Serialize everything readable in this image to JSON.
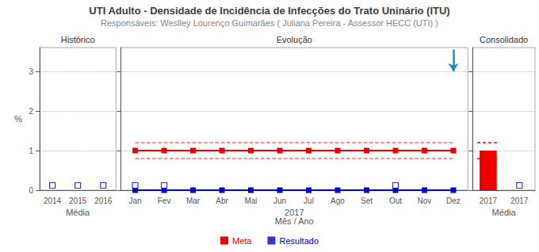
{
  "title": "UTI Adulto - Densidade de Incidência de Infecções do Trato Uninário (ITU)",
  "subtitle": "Responsáveis: Weslley Lourenço Guimarães ( Juliana Pereira - Assessor HECC (UTI) )",
  "legend": "bottom",
  "chart_data": [
    {
      "type": "scatter",
      "title": "Histórico",
      "categories": [
        "2014",
        "2015",
        "2016"
      ],
      "y_label": "%",
      "x_label": "Média",
      "ylim": [
        0,
        3.6
      ],
      "yticks": [
        0,
        1,
        2,
        3
      ],
      "grid": true,
      "series": [
        {
          "name": "Resultado",
          "color": "#0000CC",
          "marker": "open_square",
          "values": [
            0.12,
            0.12,
            0.12
          ]
        }
      ]
    },
    {
      "type": "line",
      "title": "Evolução",
      "categories": [
        "Jan",
        "Fev",
        "Mar",
        "Abr",
        "Mai",
        "Jun",
        "Jul",
        "Ago",
        "Set",
        "Out",
        "Nov",
        "Dez"
      ],
      "x_label": "2017\nMês / Ano",
      "ylim": [
        0,
        3.6
      ],
      "yticks": [
        0,
        1,
        2,
        3
      ],
      "grid": true,
      "tick_labels": "x",
      "series": [
        {
          "name": "Meta",
          "color": "#EE0000",
          "line_style": "dashed",
          "marker": "none",
          "values": [
            1.2,
            1.2,
            1.2,
            1.2,
            1.2,
            1.2,
            1.2,
            1.2,
            1.2,
            1.2,
            1.2,
            1.2
          ]
        },
        {
          "name": "Meta",
          "color": "#EE0000",
          "line_style": "dashed",
          "marker": "none",
          "values": [
            0.8,
            0.8,
            0.8,
            0.8,
            0.8,
            0.8,
            0.8,
            0.8,
            0.8,
            0.8,
            0.8,
            0.8
          ]
        },
        {
          "name": "Meta",
          "color": "#EE0000",
          "line_style": "solid",
          "marker": "square",
          "values": [
            1.0,
            1.0,
            1.0,
            1.0,
            1.0,
            1.0,
            1.0,
            1.0,
            1.0,
            1.0,
            1.0,
            1.0
          ]
        },
        {
          "name": "Resultado",
          "color": "#0000CC",
          "line_style": "solid",
          "marker": "square",
          "values": [
            0.0,
            0.0,
            0.0,
            0.0,
            0.0,
            0.0,
            0.0,
            0.0,
            0.0,
            0.0,
            0.0,
            0.0
          ]
        },
        {
          "name": "Resultado",
          "type": "scatter",
          "color": "#0000CC",
          "marker": "open_square",
          "values": [
            0.12,
            0.12,
            null,
            null,
            null,
            null,
            null,
            null,
            null,
            0.12,
            null,
            null
          ]
        }
      ],
      "annotations": [
        {
          "type": "arrow",
          "x": "Dez",
          "y_from": 3.55,
          "y_to": 3.0,
          "color": "#1B8FC5"
        }
      ]
    },
    {
      "type": "bar",
      "title": "Consolidado",
      "categories": [
        "2017",
        "2017"
      ],
      "x_label": "Média",
      "ylim": [
        0,
        3.6
      ],
      "yticks": [
        0,
        1,
        2,
        3
      ],
      "grid": true,
      "tick_labels": "x",
      "series": [
        {
          "name": "Meta",
          "color": "#EE0000",
          "values": [
            1.0,
            null
          ]
        },
        {
          "name": "Meta",
          "type": "hline",
          "color": "#EE0000",
          "line_style": "dashed",
          "values": [
            1.2,
            null
          ]
        },
        {
          "name": "Meta",
          "type": "hline",
          "color": "#EE0000",
          "line_style": "dashed",
          "values": [
            0.8,
            null
          ]
        },
        {
          "name": "Resultado",
          "type": "scatter",
          "color": "#0000CC",
          "marker": "open_square",
          "values": [
            null,
            0.12
          ]
        }
      ]
    }
  ]
}
